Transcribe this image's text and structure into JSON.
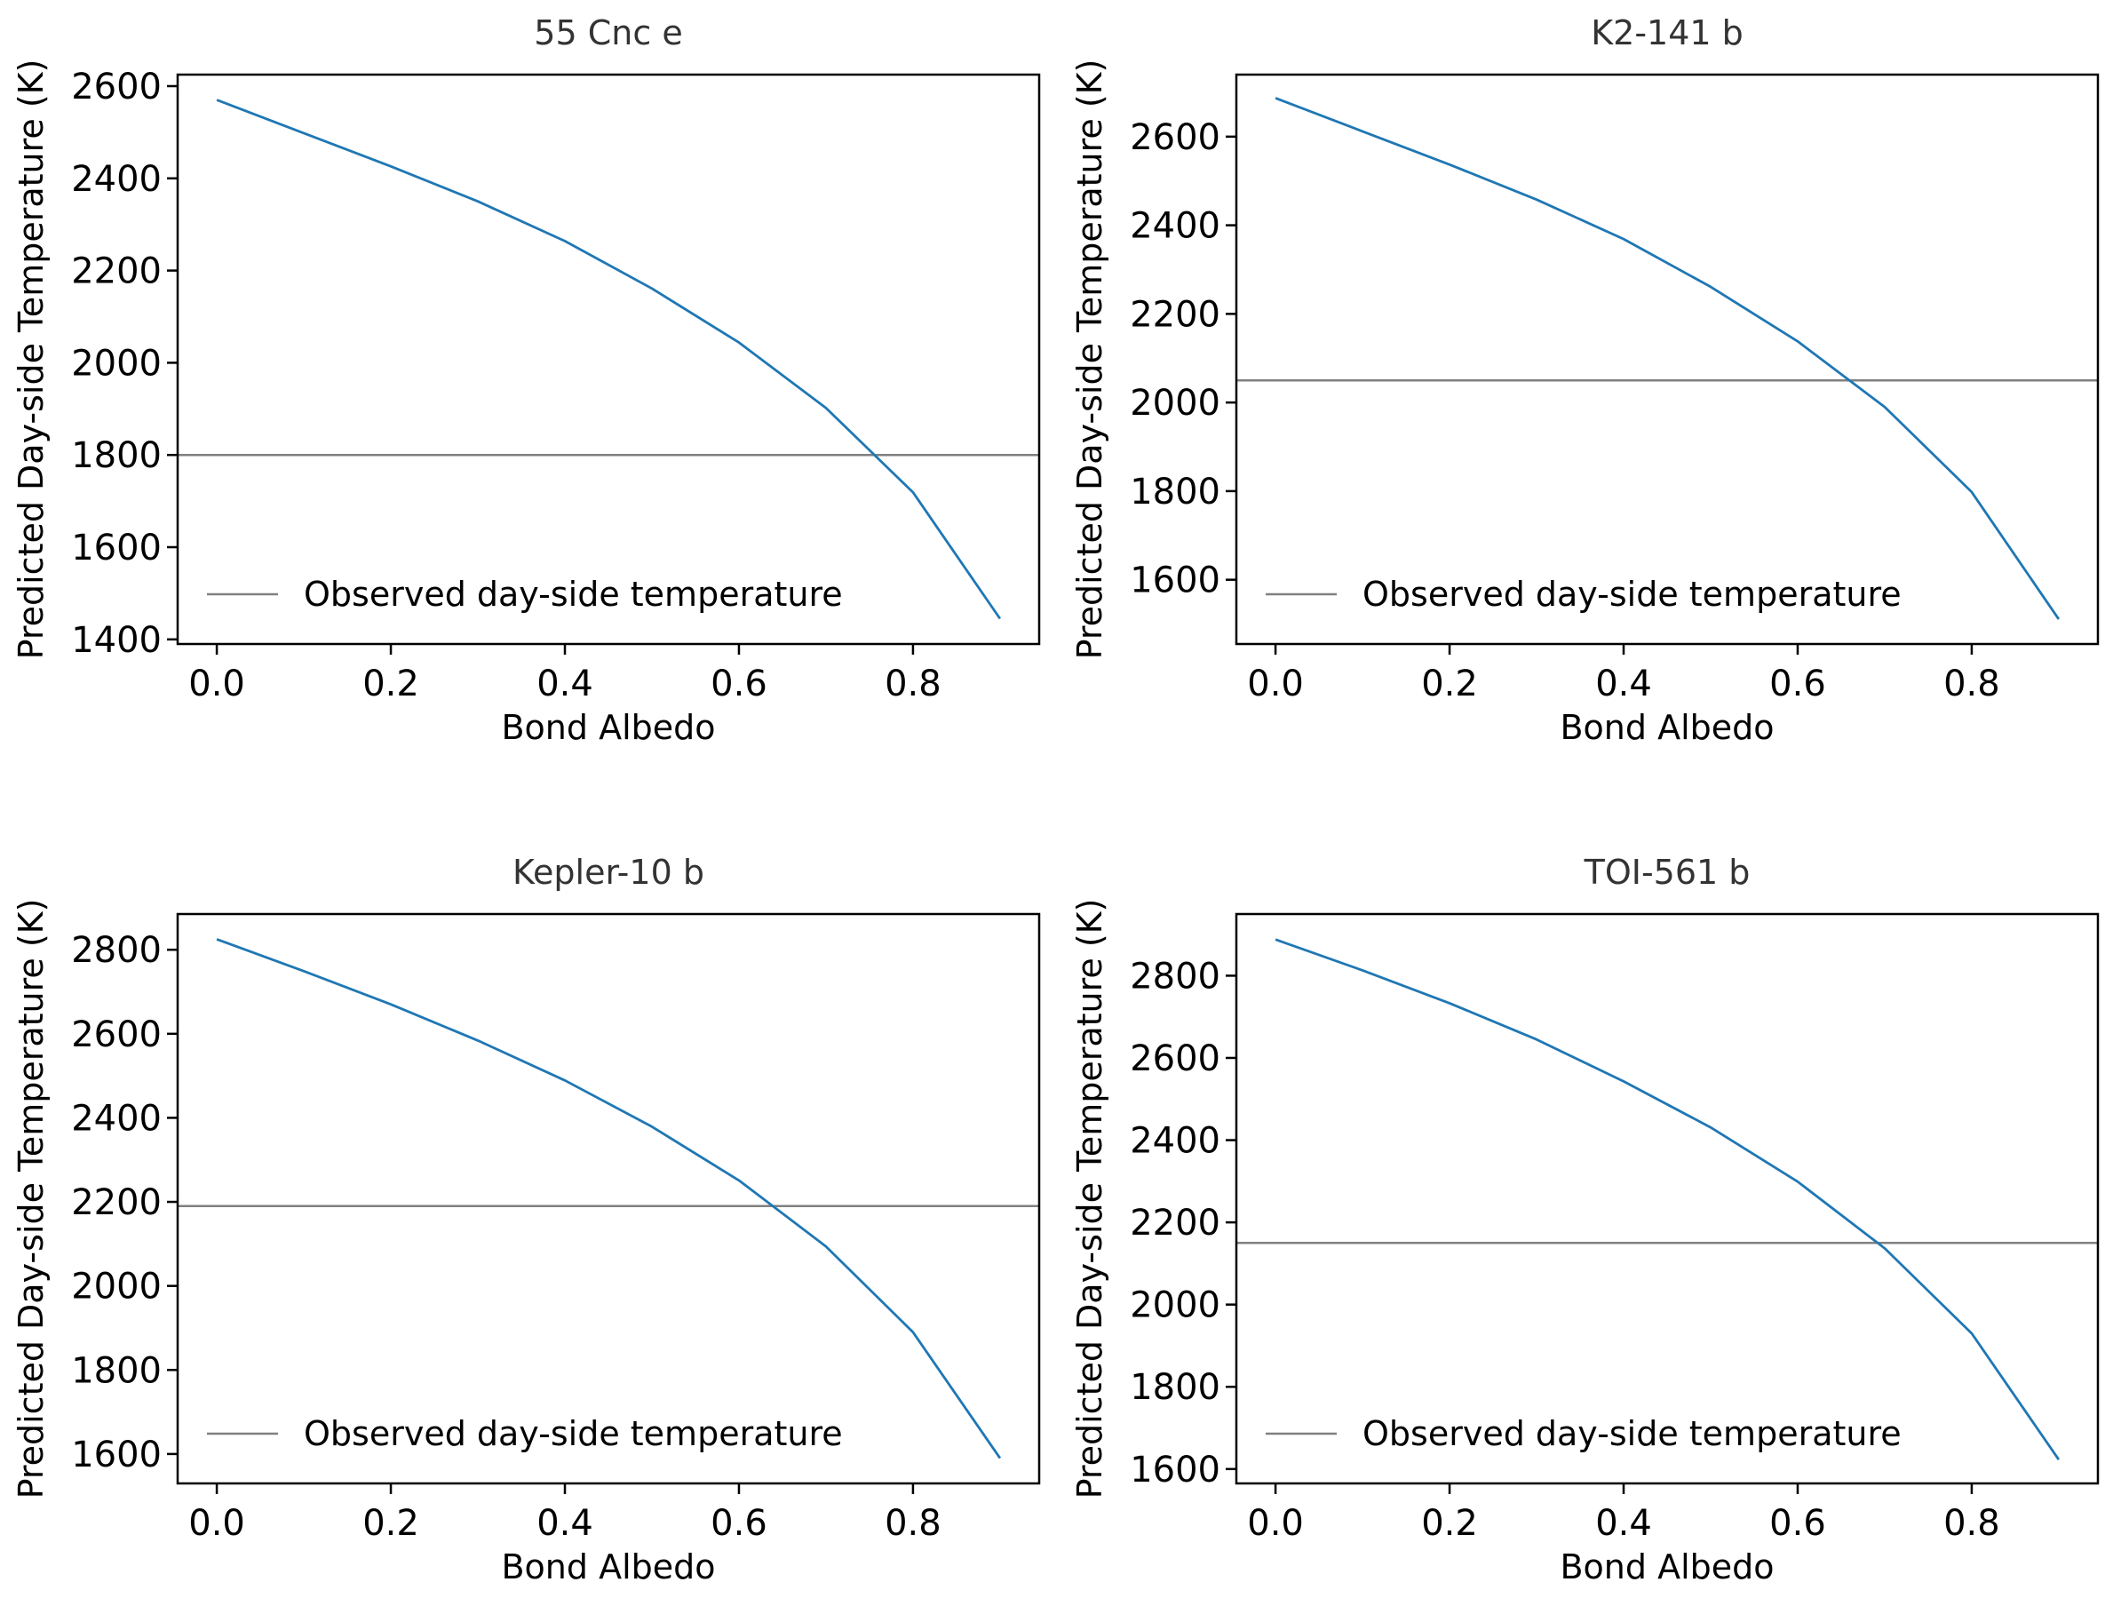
{
  "colors": {
    "series": "#1f77b4",
    "observed": "#808080",
    "frame": "#000000",
    "title": "#333333"
  },
  "chart_data": [
    {
      "type": "line",
      "title": "55 Cnc e",
      "xlabel": "Bond Albedo",
      "ylabel": "Predicted Day-side Temperature (K)",
      "xlim": [
        -0.045,
        0.945
      ],
      "ylim": [
        1390,
        2625
      ],
      "xticks": [
        0.0,
        0.2,
        0.4,
        0.6,
        0.8
      ],
      "xtick_labels": [
        "0.0",
        "0.2",
        "0.4",
        "0.6",
        "0.8"
      ],
      "yticks": [
        1400,
        1600,
        1800,
        2000,
        2200,
        2400,
        2600
      ],
      "ytick_labels": [
        "1400",
        "1600",
        "1800",
        "2000",
        "2200",
        "2400",
        "2600"
      ],
      "series": [
        {
          "name": "Predicted",
          "x": [
            0.0,
            0.1,
            0.2,
            0.3,
            0.4,
            0.5,
            0.6,
            0.7,
            0.8,
            0.9
          ],
          "values": [
            2570,
            2498,
            2426,
            2350,
            2264,
            2161,
            2044,
            1902,
            1719,
            1445
          ]
        }
      ],
      "hline": {
        "y": 1800,
        "label": "Observed day-side temperature"
      },
      "legend": {
        "entries": [
          "Observed day-side temperature"
        ],
        "position": "lower-left"
      }
    },
    {
      "type": "line",
      "title": "K2-141 b",
      "xlabel": "Bond Albedo",
      "ylabel": "Predicted Day-side Temperature (K)",
      "xlim": [
        -0.045,
        0.945
      ],
      "ylim": [
        1455,
        2740
      ],
      "xticks": [
        0.0,
        0.2,
        0.4,
        0.6,
        0.8
      ],
      "xtick_labels": [
        "0.0",
        "0.2",
        "0.4",
        "0.6",
        "0.8"
      ],
      "yticks": [
        1600,
        1800,
        2000,
        2200,
        2400,
        2600
      ],
      "ytick_labels": [
        "1600",
        "1800",
        "2000",
        "2200",
        "2400",
        "2600"
      ],
      "series": [
        {
          "name": "Predicted",
          "x": [
            0.0,
            0.1,
            0.2,
            0.3,
            0.4,
            0.5,
            0.6,
            0.7,
            0.8,
            0.9
          ],
          "values": [
            2687,
            2612,
            2537,
            2458,
            2369,
            2261,
            2138,
            1990,
            1798,
            1511
          ]
        }
      ],
      "hline": {
        "y": 2050,
        "label": "Observed day-side temperature"
      },
      "legend": {
        "entries": [
          "Observed day-side temperature"
        ],
        "position": "lower-left"
      }
    },
    {
      "type": "line",
      "title": "Kepler-10 b",
      "xlabel": "Bond Albedo",
      "ylabel": "Predicted Day-side Temperature (K)",
      "xlim": [
        -0.045,
        0.945
      ],
      "ylim": [
        1530,
        2885
      ],
      "xticks": [
        0.0,
        0.2,
        0.4,
        0.6,
        0.8
      ],
      "xtick_labels": [
        "0.0",
        "0.2",
        "0.4",
        "0.6",
        "0.8"
      ],
      "yticks": [
        1600,
        1800,
        2000,
        2200,
        2400,
        2600,
        2800
      ],
      "ytick_labels": [
        "1600",
        "1800",
        "2000",
        "2200",
        "2400",
        "2600",
        "2800"
      ],
      "series": [
        {
          "name": "Predicted",
          "x": [
            0.0,
            0.1,
            0.2,
            0.3,
            0.4,
            0.5,
            0.6,
            0.7,
            0.8,
            0.9
          ],
          "values": [
            2825,
            2749,
            2670,
            2584,
            2489,
            2379,
            2251,
            2094,
            1890,
            1590
          ]
        }
      ],
      "hline": {
        "y": 2190,
        "label": "Observed day-side temperature"
      },
      "legend": {
        "entries": [
          "Observed day-side temperature"
        ],
        "position": "lower-left"
      }
    },
    {
      "type": "line",
      "title": "TOI-561 b",
      "xlabel": "Bond Albedo",
      "ylabel": "Predicted Day-side Temperature (K)",
      "xlim": [
        -0.045,
        0.945
      ],
      "ylim": [
        1565,
        2950
      ],
      "xticks": [
        0.0,
        0.2,
        0.4,
        0.6,
        0.8
      ],
      "xtick_labels": [
        "0.0",
        "0.2",
        "0.4",
        "0.6",
        "0.8"
      ],
      "yticks": [
        1600,
        1800,
        2000,
        2200,
        2400,
        2600,
        2800
      ],
      "ytick_labels": [
        "1600",
        "1800",
        "2000",
        "2200",
        "2400",
        "2600",
        "2800"
      ],
      "series": [
        {
          "name": "Predicted",
          "x": [
            0.0,
            0.1,
            0.2,
            0.3,
            0.4,
            0.5,
            0.6,
            0.7,
            0.8,
            0.9
          ],
          "values": [
            2888,
            2813,
            2733,
            2645,
            2543,
            2431,
            2299,
            2137,
            1930,
            1623
          ]
        }
      ],
      "hline": {
        "y": 2150,
        "label": "Observed day-side temperature"
      },
      "legend": {
        "entries": [
          "Observed day-side temperature"
        ],
        "position": "lower-left"
      }
    }
  ]
}
